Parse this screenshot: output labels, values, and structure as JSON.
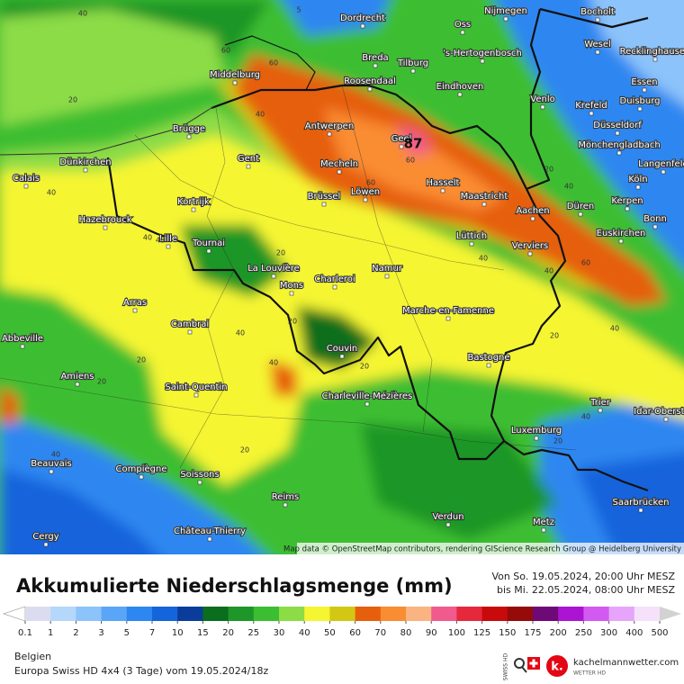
{
  "map": {
    "cities": [
      "Dordrecht",
      "Oss",
      "Nijmegen",
      "Bocholt",
      "Wesel",
      "Recklinghausen",
      "Breda",
      "Tilburg",
      "'s-Hertogenbosch",
      "Middelburg",
      "Roosendaal",
      "Eindhoven",
      "Venlo",
      "Essen",
      "Duisburg",
      "Krefeld",
      "Düsseldorf",
      "Mönchengladbach",
      "Antwerpen",
      "Geel",
      "Brügge",
      "Gent",
      "Dünkirchen",
      "Mecheln",
      "Langenfeld",
      "Calais",
      "Köln",
      "Hasselt",
      "Maastricht",
      "Brüssel",
      "Löwen",
      "Kortrijk",
      "Düren",
      "Kerpen",
      "Aachen",
      "Bonn",
      "Hazebrouck",
      "Lüttich",
      "Euskirchen",
      "Verviers",
      "Lille",
      "Tournai",
      "Namur",
      "La Louvière",
      "Charleroi",
      "Mons",
      "Arras",
      "Marche-en-Famenne",
      "Cambrai",
      "Abbeville",
      "Couvin",
      "Bastogne",
      "Amiens",
      "Saint-Quentin",
      "Trier",
      "Charleville-Mézières",
      "Luxemburg",
      "Idar-Oberstein",
      "Beauvais",
      "Compiègne",
      "Soissons",
      "Saarbrücken",
      "Reims",
      "Verdun",
      "Château-Thierry",
      "Metz",
      "Cergy"
    ],
    "contour_labels": [
      5,
      40,
      60,
      60,
      40,
      20,
      40,
      60,
      60,
      40,
      40,
      20,
      40,
      40,
      60,
      20,
      40,
      40,
      20,
      20,
      20,
      20,
      40,
      40,
      20,
      40,
      20,
      20,
      40
    ],
    "max_value": 87,
    "attribution": "Map data © OpenStreetMap contributors, rendering GIScience Research Group @ Heidelberg University"
  },
  "legend": {
    "title": "Akkumulierte Niederschlagsmenge (mm)",
    "period_from": "Von So. 19.05.2024, 20:00 Uhr MESZ",
    "period_to": "bis Mi. 22.05.2024, 08:00 Uhr MESZ",
    "values": [
      0.1,
      1,
      2,
      3,
      5,
      7,
      10,
      15,
      20,
      25,
      30,
      40,
      50,
      60,
      70,
      80,
      90,
      100,
      125,
      150,
      175,
      200,
      250,
      300,
      400,
      500
    ],
    "colors": [
      "#dcdcf0",
      "#b4d7fa",
      "#8cc3fa",
      "#5aa5f5",
      "#2d87f0",
      "#1464dc",
      "#0a3c9b",
      "#0a6e1e",
      "#1e9628",
      "#3cbe32",
      "#8cdc46",
      "#f5f532",
      "#d2c814",
      "#e65f0a",
      "#fa8c32",
      "#fab482",
      "#f05a8c",
      "#e6283c",
      "#c80a0a",
      "#960a0a",
      "#6e0a78",
      "#aa14d2",
      "#d25af0",
      "#e6a5fa",
      "#f5e1fa",
      "#d2d2d2"
    ]
  },
  "footer": {
    "region": "Belgien",
    "model": "Europa Swiss HD 4x4 (3 Tage) vom 19.05.2024/18z"
  },
  "logo": {
    "badge": "SWISS HD",
    "site": "kachelmannwetter.com",
    "sub": "WETTER HD"
  }
}
